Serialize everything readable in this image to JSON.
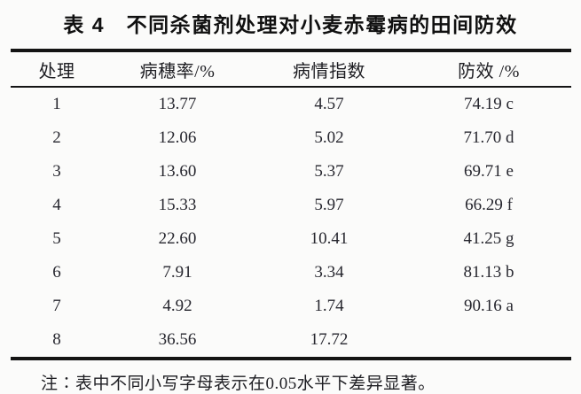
{
  "title": "表 4　不同杀菌剂处理对小麦赤霉病的田间防效",
  "table": {
    "columns": [
      "处理",
      "病穗率/%",
      "病情指数",
      "防效 /%"
    ],
    "rows": [
      {
        "treatment": "1",
        "rate": "13.77",
        "index": "4.57",
        "efficacy": "74.19 c"
      },
      {
        "treatment": "2",
        "rate": "12.06",
        "index": "5.02",
        "efficacy": "71.70 d"
      },
      {
        "treatment": "3",
        "rate": "13.60",
        "index": "5.37",
        "efficacy": "69.71 e"
      },
      {
        "treatment": "4",
        "rate": "15.33",
        "index": "5.97",
        "efficacy": "66.29 f"
      },
      {
        "treatment": "5",
        "rate": "22.60",
        "index": "10.41",
        "efficacy": "41.25 g"
      },
      {
        "treatment": "6",
        "rate": "7.91",
        "index": "3.34",
        "efficacy": "81.13 b"
      },
      {
        "treatment": "7",
        "rate": "4.92",
        "index": "1.74",
        "efficacy": "90.16 a"
      },
      {
        "treatment": "8",
        "rate": "36.56",
        "index": "17.72",
        "efficacy": ""
      }
    ]
  },
  "note": "注∶表中不同小写字母表示在0.05水平下差异显著。",
  "colors": {
    "background": "#fbfbfa",
    "rule": "#141414",
    "text": "#22222a"
  }
}
